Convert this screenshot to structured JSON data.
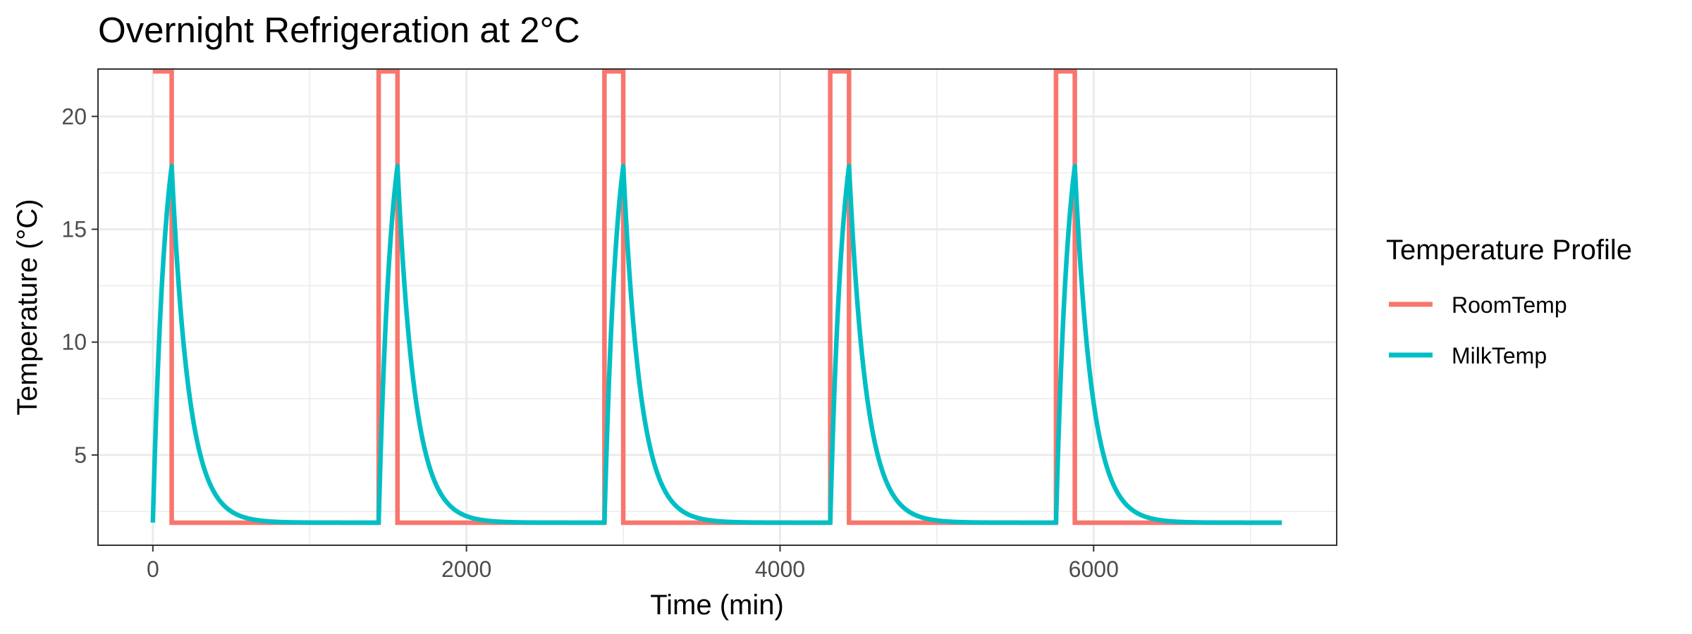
{
  "chart_data": {
    "type": "line",
    "title": "Overnight Refrigeration at 2°C",
    "xlabel": "Time (min)",
    "ylabel": "Temperature (°C)",
    "xlim": [
      -350,
      7550
    ],
    "ylim": [
      1.0,
      22.1
    ],
    "x_ticks": [
      0,
      2000,
      4000,
      6000
    ],
    "y_ticks": [
      5,
      10,
      15,
      20
    ],
    "grid": true,
    "legend": {
      "title": "Temperature Profile",
      "position": "right",
      "entries": [
        "RoomTemp",
        "MilkTemp"
      ]
    },
    "colors": {
      "RoomTemp": "#F8766D",
      "MilkTemp": "#00BFC4"
    },
    "pulse": {
      "period_min": 1440,
      "duration_min": 120,
      "cycles": 5,
      "end_min": 7200
    },
    "series": [
      {
        "name": "RoomTemp",
        "description": "22°C for 120 min at the start of each 1440-min cycle, otherwise 2°C",
        "x": [
          0,
          120,
          120,
          1440,
          1440,
          1560,
          1560,
          2880,
          2880,
          3000,
          3000,
          4320,
          4320,
          4440,
          4440,
          5760,
          5760,
          5880,
          5880,
          7200
        ],
        "y": [
          22,
          22,
          2,
          2,
          22,
          22,
          2,
          2,
          22,
          22,
          2,
          2,
          22,
          22,
          2,
          2,
          22,
          22,
          2,
          2
        ]
      },
      {
        "name": "MilkTemp",
        "description": "warms toward 22°C during each pulse (peak ≈17.8°C at 120 min), then decays back to 2°C",
        "peak": 17.8,
        "baseline": 2
      }
    ]
  }
}
